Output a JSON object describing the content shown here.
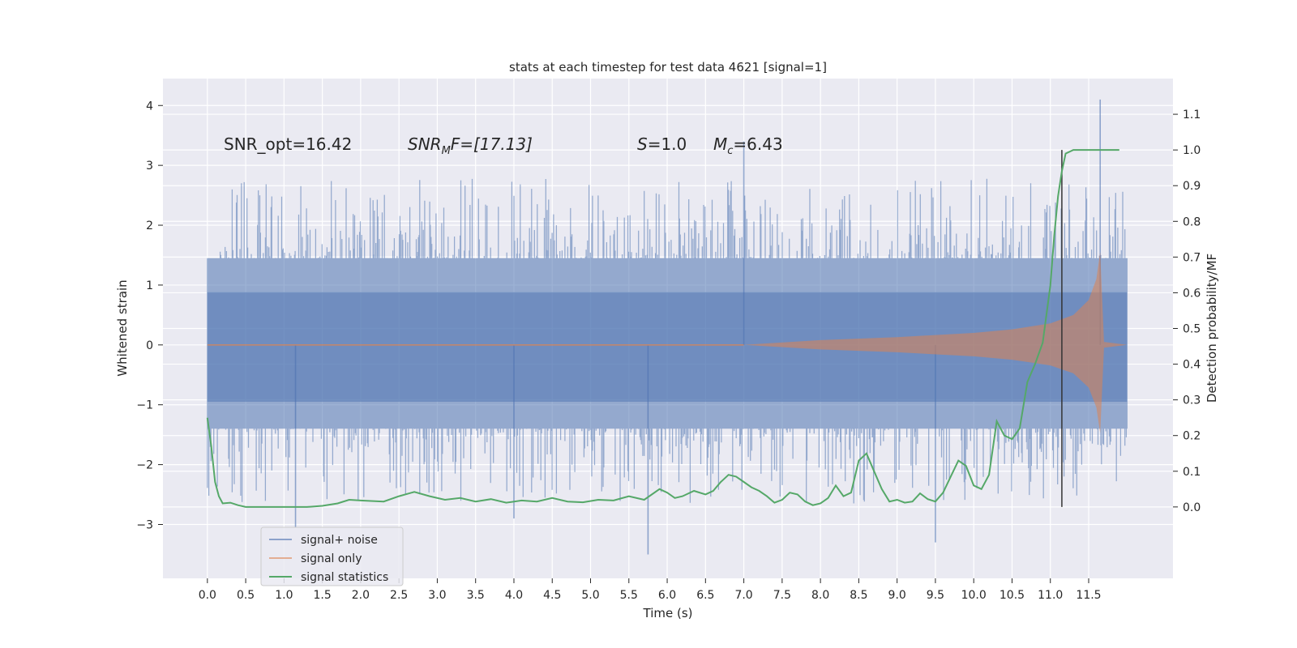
{
  "chart_data": {
    "type": "line",
    "title": "stats at each timestep for test data 4621 [signal=1]",
    "xlabel": "Time (s)",
    "ylabel_left": "Whitened strain",
    "ylabel_right": "Detection probability/MF",
    "xlim": [
      -0.58,
      12.6
    ],
    "ylim_left": [
      -3.9,
      4.45
    ],
    "ylim_right": [
      -0.2,
      1.2
    ],
    "x_ticks": [
      "0.0",
      "0.5",
      "1.0",
      "1.5",
      "2.0",
      "2.5",
      "3.0",
      "3.5",
      "4.0",
      "4.5",
      "5.0",
      "5.5",
      "6.0",
      "6.5",
      "7.0",
      "7.5",
      "8.0",
      "8.5",
      "9.0",
      "9.5",
      "10.0",
      "10.5",
      "11.0",
      "11.5"
    ],
    "y_ticks_left": [
      "4",
      "3",
      "2",
      "1",
      "0",
      "−1",
      "−2",
      "−3"
    ],
    "y_ticks_right": [
      "1.1",
      "1.0",
      "0.9",
      "0.8",
      "0.7",
      "0.6",
      "0.5",
      "0.4",
      "0.3",
      "0.2",
      "0.1",
      "0.0"
    ],
    "grid": true,
    "legend_position": "bottom-left",
    "annotations": {
      "snr_opt": "SNR_opt=16.42",
      "snr_mf_sym": "SNR",
      "snr_mf_sub": "M",
      "snr_mf_rest": "F=[17.13]",
      "s_sym": "S",
      "s_rest": "=1.0",
      "mc_sym": "M",
      "mc_sub": "c",
      "mc_rest": "=6.43"
    },
    "vertical_line_x": 11.15,
    "series": [
      {
        "name": "signal+ noise",
        "axis": "left",
        "color": "#4c72b0",
        "kind": "noise-band",
        "duration": 12.0,
        "typical_range": [
          -1.4,
          1.45
        ],
        "notable_peaks": [
          [
            7.0,
            3.4
          ],
          [
            11.65,
            4.1
          ],
          [
            5.75,
            -3.5
          ],
          [
            1.15,
            -3.05
          ],
          [
            9.5,
            -3.3
          ],
          [
            4.0,
            -2.9
          ]
        ]
      },
      {
        "name": "signal only",
        "axis": "left",
        "color": "#dd8452",
        "kind": "chirp",
        "start": 7.0,
        "merger": 11.65,
        "end": 12.0,
        "envelope": [
          [
            7.0,
            0.0
          ],
          [
            8.0,
            0.08
          ],
          [
            9.0,
            0.13
          ],
          [
            10.0,
            0.2
          ],
          [
            10.5,
            0.26
          ],
          [
            11.0,
            0.36
          ],
          [
            11.3,
            0.5
          ],
          [
            11.5,
            0.75
          ],
          [
            11.6,
            1.1
          ],
          [
            11.65,
            1.55
          ],
          [
            11.7,
            0.05
          ],
          [
            12.0,
            0.0
          ]
        ]
      },
      {
        "name": "signal statistics",
        "axis": "right",
        "color": "#55a868",
        "kind": "line",
        "x": [
          0.0,
          0.05,
          0.1,
          0.15,
          0.2,
          0.3,
          0.4,
          0.5,
          0.7,
          1.0,
          1.3,
          1.5,
          1.7,
          1.85,
          2.0,
          2.3,
          2.5,
          2.7,
          2.9,
          3.1,
          3.3,
          3.5,
          3.7,
          3.9,
          4.1,
          4.3,
          4.5,
          4.7,
          4.9,
          5.1,
          5.3,
          5.5,
          5.7,
          5.9,
          6.0,
          6.1,
          6.2,
          6.35,
          6.5,
          6.6,
          6.7,
          6.8,
          6.9,
          7.0,
          7.1,
          7.2,
          7.3,
          7.4,
          7.5,
          7.6,
          7.7,
          7.8,
          7.9,
          8.0,
          8.1,
          8.2,
          8.3,
          8.4,
          8.5,
          8.6,
          8.7,
          8.8,
          8.9,
          9.0,
          9.1,
          9.2,
          9.3,
          9.4,
          9.5,
          9.6,
          9.7,
          9.8,
          9.9,
          10.0,
          10.1,
          10.2,
          10.3,
          10.4,
          10.5,
          10.6,
          10.7,
          10.8,
          10.9,
          11.0,
          11.05,
          11.1,
          11.15,
          11.2,
          11.3,
          11.4,
          11.5,
          11.7,
          11.9
        ],
        "values": [
          0.25,
          0.17,
          0.07,
          0.03,
          0.01,
          0.012,
          0.005,
          0.0,
          0.0,
          0.0,
          0.0,
          0.003,
          0.01,
          0.02,
          0.018,
          0.015,
          0.03,
          0.042,
          0.03,
          0.02,
          0.025,
          0.015,
          0.022,
          0.012,
          0.018,
          0.015,
          0.025,
          0.015,
          0.013,
          0.02,
          0.018,
          0.03,
          0.02,
          0.05,
          0.04,
          0.025,
          0.03,
          0.045,
          0.035,
          0.045,
          0.07,
          0.09,
          0.085,
          0.07,
          0.055,
          0.045,
          0.03,
          0.012,
          0.02,
          0.04,
          0.035,
          0.015,
          0.005,
          0.01,
          0.025,
          0.06,
          0.03,
          0.04,
          0.13,
          0.15,
          0.1,
          0.05,
          0.015,
          0.02,
          0.012,
          0.015,
          0.038,
          0.022,
          0.015,
          0.04,
          0.085,
          0.13,
          0.115,
          0.06,
          0.05,
          0.09,
          0.24,
          0.2,
          0.19,
          0.22,
          0.35,
          0.4,
          0.46,
          0.62,
          0.76,
          0.87,
          0.94,
          0.99,
          1.0,
          1.0,
          1.0,
          1.0,
          1.0
        ]
      }
    ]
  }
}
